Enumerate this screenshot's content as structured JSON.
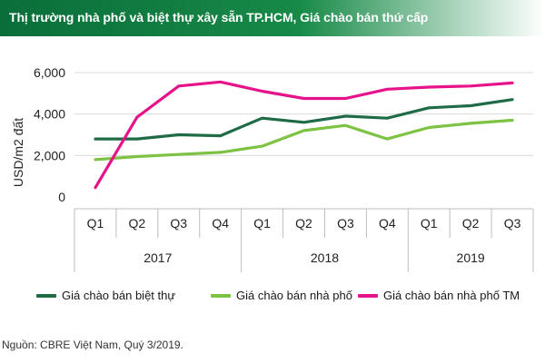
{
  "title": "Thị trường nhà phố và biệt thự xây sẵn TP.HCM, Giá chào bán thứ cấp",
  "source": "Nguồn: CBRE Việt Nam, Quý 3/2019.",
  "colors": {
    "title_bg": "#0a6e3a",
    "series_1": "#1e6b45",
    "series_2": "#7dc242",
    "series_3": "#e6138a"
  },
  "chart_data": {
    "type": "line",
    "ylabel": "USD/m2 đất",
    "ylim": [
      0,
      6000
    ],
    "yticks": [
      "0",
      "2,000",
      "4,000",
      "6,000"
    ],
    "yticks_values": [
      0,
      2000,
      4000,
      6000
    ],
    "grid": true,
    "categories": [
      "Q1",
      "Q2",
      "Q3",
      "Q4",
      "Q1",
      "Q2",
      "Q3",
      "Q4",
      "Q1",
      "Q2",
      "Q3"
    ],
    "groups": [
      {
        "label": "2017",
        "count": 4
      },
      {
        "label": "2018",
        "count": 4
      },
      {
        "label": "2019",
        "count": 3
      }
    ],
    "series": [
      {
        "name": "Giá chào bán biệt thự",
        "values": [
          2800,
          2800,
          3000,
          2950,
          3800,
          3600,
          3900,
          3800,
          4300,
          4400,
          4700
        ]
      },
      {
        "name": "Giá chào bán nhà phố",
        "values": [
          1800,
          1950,
          2050,
          2150,
          2450,
          3200,
          3450,
          2800,
          3350,
          3550,
          3700
        ]
      },
      {
        "name": "Giá chào bán nhà phố TM",
        "values": [
          450,
          3850,
          5350,
          5550,
          5100,
          4750,
          4750,
          5200,
          5300,
          5350,
          5500
        ]
      }
    ],
    "legend_position": "bottom"
  }
}
